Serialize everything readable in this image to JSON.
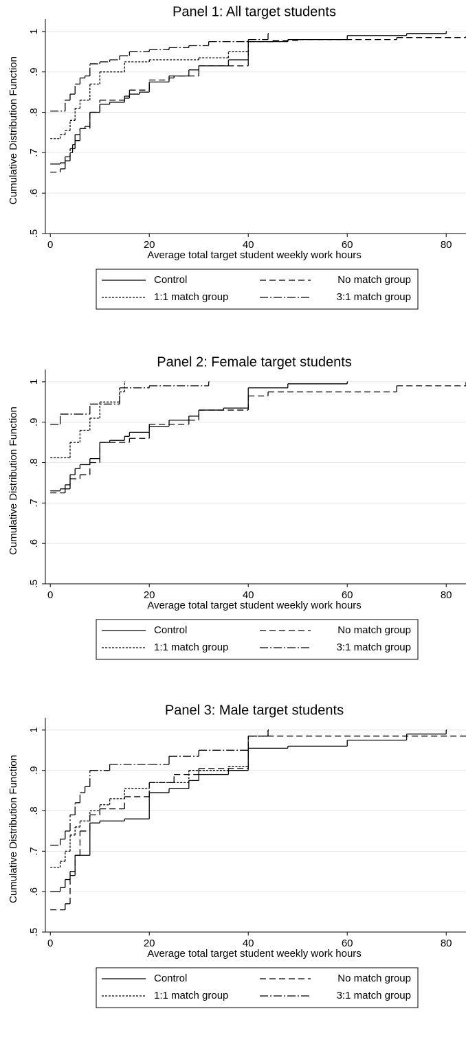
{
  "chart_data": [
    {
      "type": "step",
      "title": "Panel 1: All target students",
      "xlabel": "Average total target student weekly work hours",
      "ylabel": "Cumulative Distribution Function",
      "xlim": [
        -1,
        84
      ],
      "ylim": [
        0.5,
        1.01
      ],
      "xticks": [
        0,
        20,
        40,
        60,
        80
      ],
      "yticks": [
        {
          "value": 0.5,
          "label": ".5"
        },
        {
          "value": 0.6,
          "label": ".6"
        },
        {
          "value": 0.7,
          "label": ".7"
        },
        {
          "value": 0.8,
          "label": ".8"
        },
        {
          "value": 0.9,
          "label": ".9"
        },
        1
      ],
      "grid": true,
      "series": [
        {
          "name": "Control",
          "color": "#000000",
          "style": "solid",
          "x": [
            0,
            2,
            3,
            4,
            4.5,
            5,
            6,
            7,
            8,
            10,
            12,
            15,
            16,
            18,
            20,
            24,
            25,
            28,
            30,
            36,
            40,
            48,
            60,
            72,
            80
          ],
          "values": [
            0.672,
            0.675,
            0.69,
            0.7,
            0.72,
            0.745,
            0.76,
            0.765,
            0.8,
            0.82,
            0.825,
            0.835,
            0.845,
            0.85,
            0.875,
            0.885,
            0.89,
            0.905,
            0.915,
            0.93,
            0.975,
            0.98,
            0.99,
            0.995,
            1
          ]
        },
        {
          "name": "No match group",
          "color": "#000000",
          "style": "dash",
          "x": [
            0,
            2,
            3,
            4,
            5,
            6,
            8,
            10,
            15,
            16,
            20,
            24,
            30,
            40,
            45,
            50,
            70,
            84
          ],
          "values": [
            0.652,
            0.66,
            0.68,
            0.71,
            0.73,
            0.76,
            0.8,
            0.83,
            0.84,
            0.855,
            0.88,
            0.89,
            0.915,
            0.975,
            0.978,
            0.98,
            0.985,
            0.988
          ]
        },
        {
          "name": "1:1 match group",
          "color": "#000000",
          "style": "dot",
          "x": [
            0,
            2,
            3,
            4,
            5,
            6,
            8,
            10,
            15,
            20,
            30,
            36,
            40
          ],
          "values": [
            0.735,
            0.745,
            0.755,
            0.78,
            0.81,
            0.83,
            0.87,
            0.9,
            0.925,
            0.93,
            0.935,
            0.95,
            0.975
          ]
        },
        {
          "name": "3:1 match group",
          "color": "#000000",
          "style": "dashdot",
          "x": [
            0,
            3,
            4,
            5,
            6,
            7,
            8,
            10,
            12,
            14,
            16,
            20,
            24,
            28,
            32,
            40,
            44
          ],
          "values": [
            0.803,
            0.83,
            0.845,
            0.87,
            0.885,
            0.89,
            0.92,
            0.925,
            0.93,
            0.94,
            0.95,
            0.955,
            0.96,
            0.965,
            0.975,
            0.98,
            0.995
          ]
        }
      ]
    },
    {
      "type": "step",
      "title": "Panel 2: Female target students",
      "xlabel": "Average total target student weekly work hours",
      "ylabel": "Cumulative Distribution Function",
      "xlim": [
        -1,
        84
      ],
      "ylim": [
        0.5,
        1.01
      ],
      "xticks": [
        0,
        20,
        40,
        60,
        80
      ],
      "yticks": [
        {
          "value": 0.5,
          "label": ".5"
        },
        {
          "value": 0.6,
          "label": ".6"
        },
        {
          "value": 0.7,
          "label": ".7"
        },
        {
          "value": 0.8,
          "label": ".8"
        },
        {
          "value": 0.9,
          "label": ".9"
        },
        1
      ],
      "grid": true,
      "series": [
        {
          "name": "Control",
          "color": "#000000",
          "style": "solid",
          "x": [
            0,
            2,
            3,
            4,
            5,
            6,
            8,
            10,
            12,
            15,
            16,
            20,
            24,
            28,
            30,
            35,
            40,
            48,
            60
          ],
          "values": [
            0.73,
            0.735,
            0.745,
            0.77,
            0.785,
            0.795,
            0.81,
            0.85,
            0.855,
            0.865,
            0.875,
            0.89,
            0.905,
            0.915,
            0.93,
            0.935,
            0.985,
            0.995,
            1
          ]
        },
        {
          "name": "No match group",
          "color": "#000000",
          "style": "dash",
          "x": [
            0,
            3,
            4,
            6,
            8,
            10,
            16,
            20,
            28,
            30,
            40,
            44,
            70,
            84
          ],
          "values": [
            0.725,
            0.735,
            0.76,
            0.77,
            0.8,
            0.85,
            0.86,
            0.895,
            0.905,
            0.93,
            0.965,
            0.975,
            0.99,
            1
          ]
        },
        {
          "name": "1:1 match group",
          "color": "#000000",
          "style": "dot",
          "x": [
            0,
            4,
            6,
            8,
            10,
            14,
            15
          ],
          "values": [
            0.812,
            0.85,
            0.88,
            0.91,
            0.95,
            0.975,
            1
          ]
        },
        {
          "name": "3:1 match group",
          "color": "#000000",
          "style": "dashdot",
          "x": [
            0,
            2,
            5,
            8,
            14,
            20,
            32
          ],
          "values": [
            0.895,
            0.92,
            0.92,
            0.945,
            0.985,
            0.99,
            1
          ]
        }
      ]
    },
    {
      "type": "step",
      "title": "Panel 3: Male target students",
      "xlabel": "Average total target student weekly work hours",
      "ylabel": "Cumulative Distribution Function",
      "xlim": [
        -1,
        84
      ],
      "ylim": [
        0.5,
        1.01
      ],
      "xticks": [
        0,
        20,
        40,
        60,
        80
      ],
      "yticks": [
        {
          "value": 0.5,
          "label": ".5"
        },
        {
          "value": 0.6,
          "label": ".6"
        },
        {
          "value": 0.7,
          "label": ".7"
        },
        {
          "value": 0.8,
          "label": ".8"
        },
        {
          "value": 0.9,
          "label": ".9"
        },
        1
      ],
      "grid": true,
      "series": [
        {
          "name": "Control",
          "color": "#000000",
          "style": "solid",
          "x": [
            0,
            2,
            3,
            4,
            5,
            8,
            10,
            15,
            20,
            24,
            28,
            30,
            36,
            40,
            48,
            60,
            72,
            80
          ],
          "values": [
            0.6,
            0.61,
            0.63,
            0.65,
            0.69,
            0.77,
            0.775,
            0.78,
            0.845,
            0.855,
            0.875,
            0.89,
            0.9,
            0.955,
            0.96,
            0.975,
            0.99,
            1
          ]
        },
        {
          "name": "No match group",
          "color": "#000000",
          "style": "dash",
          "x": [
            0,
            3,
            4,
            5,
            6,
            8,
            10,
            15,
            20,
            25,
            30,
            40,
            84
          ],
          "values": [
            0.555,
            0.57,
            0.64,
            0.69,
            0.75,
            0.79,
            0.805,
            0.835,
            0.87,
            0.89,
            0.905,
            0.985,
            0.985
          ]
        },
        {
          "name": "1:1 match group",
          "color": "#000000",
          "style": "dot",
          "x": [
            0,
            2,
            3,
            4,
            5,
            6,
            8,
            10,
            12,
            15,
            20,
            28,
            36,
            40,
            44
          ],
          "values": [
            0.66,
            0.675,
            0.7,
            0.74,
            0.76,
            0.775,
            0.8,
            0.815,
            0.83,
            0.855,
            0.87,
            0.9,
            0.91,
            0.985,
            1
          ]
        },
        {
          "name": "3:1 match group",
          "color": "#000000",
          "style": "dashdot",
          "x": [
            0,
            2,
            3,
            4,
            5,
            6,
            7,
            8,
            12,
            20,
            24,
            30,
            40,
            44
          ],
          "values": [
            0.715,
            0.73,
            0.75,
            0.79,
            0.82,
            0.845,
            0.86,
            0.9,
            0.915,
            0.915,
            0.935,
            0.95,
            0.985,
            1
          ]
        }
      ]
    }
  ]
}
